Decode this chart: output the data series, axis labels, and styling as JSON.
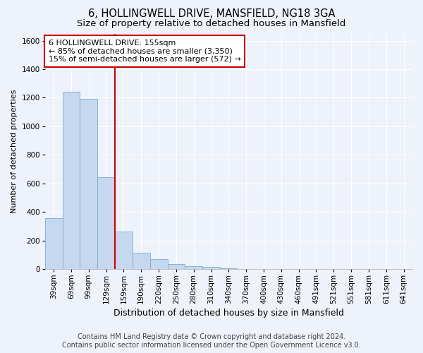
{
  "title": "6, HOLLINGWELL DRIVE, MANSFIELD, NG18 3GA",
  "subtitle": "Size of property relative to detached houses in Mansfield",
  "xlabel": "Distribution of detached houses by size in Mansfield",
  "ylabel": "Number of detached properties",
  "categories": [
    "39sqm",
    "69sqm",
    "99sqm",
    "129sqm",
    "159sqm",
    "190sqm",
    "220sqm",
    "250sqm",
    "280sqm",
    "310sqm",
    "340sqm",
    "370sqm",
    "400sqm",
    "430sqm",
    "460sqm",
    "491sqm",
    "521sqm",
    "551sqm",
    "581sqm",
    "611sqm",
    "641sqm"
  ],
  "values": [
    355,
    1240,
    1190,
    645,
    260,
    115,
    70,
    35,
    20,
    15,
    5,
    2,
    0,
    0,
    0,
    0,
    0,
    0,
    0,
    0,
    0
  ],
  "bar_color": "#c5d8f0",
  "bar_edge_color": "#7aadd4",
  "vline_color": "#cc0000",
  "vline_x_index": 4,
  "ylim": [
    0,
    1650
  ],
  "yticks": [
    0,
    200,
    400,
    600,
    800,
    1000,
    1200,
    1400,
    1600
  ],
  "annotation_text": "6 HOLLINGWELL DRIVE: 155sqm\n← 85% of detached houses are smaller (3,350)\n15% of semi-detached houses are larger (572) →",
  "annotation_box_facecolor": "#ffffff",
  "annotation_box_edgecolor": "#cc0000",
  "footer1": "Contains HM Land Registry data © Crown copyright and database right 2024.",
  "footer2": "Contains public sector information licensed under the Open Government Licence v3.0.",
  "fig_facecolor": "#eef2fa",
  "axes_facecolor": "#eef2fa",
  "grid_color": "#ffffff",
  "title_fontsize": 10.5,
  "subtitle_fontsize": 9.5,
  "xlabel_fontsize": 9,
  "ylabel_fontsize": 8,
  "tick_fontsize": 7.5,
  "annotation_fontsize": 8,
  "footer_fontsize": 7
}
